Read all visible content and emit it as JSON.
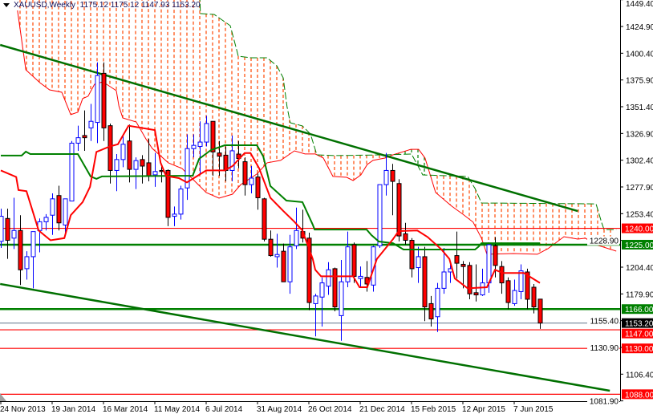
{
  "header": {
    "symbol_title": "XAUUSD,Weekly",
    "ohlc_readout": "1175.12 1175.12 1147.93 1153.20"
  },
  "chart_data": {
    "type": "candlestick",
    "symbol": "XAUUSD",
    "timeframe": "Weekly",
    "ylim": [
      1081.9,
      1449.4
    ],
    "y_ticks": [
      "1449.40",
      "1424.90",
      "1400.40",
      "1375.90",
      "1351.40",
      "1326.90",
      "1302.40",
      "1277.90",
      "1253.40",
      "1228.90",
      "1204.40",
      "1179.90",
      "1155.40",
      "1130.90",
      "1106.40",
      "1081.90"
    ],
    "x_ticks": [
      {
        "bar": 0,
        "label": "24 Nov 2013"
      },
      {
        "bar": 8,
        "label": "19 Jan 2014"
      },
      {
        "bar": 16,
        "label": "16 Mar 2014"
      },
      {
        "bar": 24,
        "label": "11 May 2014"
      },
      {
        "bar": 32,
        "label": "6 Jul 2014"
      },
      {
        "bar": 40,
        "label": "31 Aug 2014"
      },
      {
        "bar": 48,
        "label": "26 Oct 2014"
      },
      {
        "bar": 56,
        "label": "21 Dec 2014"
      },
      {
        "bar": 64,
        "label": "15 Feb 2015"
      },
      {
        "bar": 72,
        "label": "12 Apr 2015"
      },
      {
        "bar": 80,
        "label": "7 Jun 2015"
      }
    ],
    "ohlc_fields": [
      "open",
      "high",
      "low",
      "close"
    ],
    "candles": [
      [
        1228,
        1258,
        1222,
        1251
      ],
      [
        1249,
        1258,
        1212,
        1229
      ],
      [
        1231,
        1268,
        1221,
        1238
      ],
      [
        1238,
        1252,
        1188,
        1202
      ],
      [
        1203,
        1219,
        1193,
        1214
      ],
      [
        1214,
        1237,
        1185,
        1237
      ],
      [
        1238,
        1249,
        1218,
        1246
      ],
      [
        1246,
        1253,
        1238,
        1250
      ],
      [
        1252,
        1272,
        1234,
        1267
      ],
      [
        1270,
        1279,
        1238,
        1245
      ],
      [
        1243,
        1267,
        1236,
        1267
      ],
      [
        1265,
        1320,
        1265,
        1318
      ],
      [
        1318,
        1334,
        1311,
        1323
      ],
      [
        1325,
        1348,
        1311,
        1323
      ],
      [
        1332,
        1354,
        1320,
        1338
      ],
      [
        1337,
        1392,
        1318,
        1380
      ],
      [
        1382,
        1392,
        1320,
        1332
      ],
      [
        1334,
        1336,
        1281,
        1293
      ],
      [
        1293,
        1308,
        1274,
        1303
      ],
      [
        1303,
        1325,
        1296,
        1317
      ],
      [
        1320,
        1335,
        1282,
        1294
      ],
      [
        1294,
        1305,
        1276,
        1302
      ],
      [
        1303,
        1307,
        1281,
        1297
      ],
      [
        1300,
        1322,
        1283,
        1288
      ],
      [
        1289,
        1309,
        1278,
        1292
      ],
      [
        1293,
        1297,
        1282,
        1292
      ],
      [
        1293,
        1294,
        1242,
        1250
      ],
      [
        1251,
        1260,
        1242,
        1253
      ],
      [
        1253,
        1279,
        1248,
        1276
      ],
      [
        1277,
        1326,
        1266,
        1313
      ],
      [
        1313,
        1326,
        1305,
        1316
      ],
      [
        1315,
        1338,
        1290,
        1319
      ],
      [
        1319,
        1343,
        1315,
        1336
      ],
      [
        1338,
        1338,
        1288,
        1310
      ],
      [
        1309,
        1320,
        1288,
        1306
      ],
      [
        1307,
        1315,
        1283,
        1293
      ],
      [
        1293,
        1325,
        1283,
        1311
      ],
      [
        1308,
        1320,
        1295,
        1304
      ],
      [
        1301,
        1305,
        1270,
        1280
      ],
      [
        1280,
        1297,
        1272,
        1286
      ],
      [
        1287,
        1290,
        1257,
        1268
      ],
      [
        1267,
        1268,
        1228,
        1230
      ],
      [
        1230,
        1238,
        1214,
        1215
      ],
      [
        1214,
        1235,
        1204,
        1216
      ],
      [
        1219,
        1226,
        1191,
        1191
      ],
      [
        1191,
        1234,
        1180,
        1223
      ],
      [
        1224,
        1259,
        1221,
        1238
      ],
      [
        1237,
        1257,
        1227,
        1231
      ],
      [
        1231,
        1236,
        1165,
        1172
      ],
      [
        1171,
        1180,
        1141,
        1178
      ],
      [
        1177,
        1195,
        1150,
        1190
      ],
      [
        1187,
        1209,
        1179,
        1202
      ],
      [
        1203,
        1204,
        1164,
        1168
      ],
      [
        1160,
        1211,
        1137,
        1191
      ],
      [
        1191,
        1237,
        1186,
        1223
      ],
      [
        1225,
        1227,
        1190,
        1196
      ],
      [
        1194,
        1205,
        1186,
        1196
      ],
      [
        1195,
        1210,
        1182,
        1189
      ],
      [
        1188,
        1224,
        1182,
        1223
      ],
      [
        1224,
        1280,
        1222,
        1280
      ],
      [
        1280,
        1309,
        1270,
        1293
      ],
      [
        1293,
        1299,
        1252,
        1283
      ],
      [
        1281,
        1285,
        1228,
        1233
      ],
      [
        1235,
        1245,
        1225,
        1229
      ],
      [
        1229,
        1231,
        1195,
        1203
      ],
      [
        1204,
        1223,
        1190,
        1214
      ],
      [
        1214,
        1223,
        1155,
        1168
      ],
      [
        1171,
        1178,
        1150,
        1157
      ],
      [
        1159,
        1190,
        1145,
        1185
      ],
      [
        1185,
        1222,
        1180,
        1200
      ],
      [
        1200,
        1208,
        1190,
        1203
      ],
      [
        1215,
        1237,
        1194,
        1208
      ],
      [
        1207,
        1210,
        1185,
        1205
      ],
      [
        1206,
        1209,
        1175,
        1180
      ],
      [
        1181,
        1207,
        1173,
        1179
      ],
      [
        1179,
        1203,
        1178,
        1190
      ],
      [
        1190,
        1227,
        1181,
        1225
      ],
      [
        1224,
        1232,
        1195,
        1206
      ],
      [
        1205,
        1210,
        1180,
        1190
      ],
      [
        1192,
        1195,
        1166,
        1172
      ],
      [
        1171,
        1193,
        1169,
        1183
      ],
      [
        1182,
        1207,
        1175,
        1201
      ],
      [
        1200,
        1203,
        1166,
        1175
      ],
      [
        1186,
        1189,
        1162,
        1168
      ],
      [
        1175.12,
        1175.12,
        1147.93,
        1153.2
      ]
    ],
    "indicators": {
      "tenkan_sen": {
        "color": "#ff0000",
        "points": [
          [
            0,
            1293
          ],
          [
            2.4,
            1287
          ],
          [
            2.75,
            1275
          ],
          [
            4,
            1274
          ],
          [
            5.9,
            1238
          ],
          [
            7.75,
            1229
          ],
          [
            9.9,
            1231
          ],
          [
            10.9,
            1252
          ],
          [
            12.75,
            1264
          ],
          [
            13.9,
            1278
          ],
          [
            14.9,
            1310
          ],
          [
            17,
            1315
          ],
          [
            18.25,
            1317
          ],
          [
            19.9,
            1334
          ],
          [
            24,
            1330
          ],
          [
            24.9,
            1300
          ],
          [
            25.75,
            1288
          ],
          [
            27.75,
            1286
          ],
          [
            29,
            1282
          ],
          [
            32,
            1293
          ],
          [
            34.9,
            1293
          ],
          [
            36.1,
            1297
          ],
          [
            38,
            1309
          ],
          [
            38.9,
            1309
          ],
          [
            40.25,
            1295
          ],
          [
            42,
            1268
          ],
          [
            44,
            1256
          ],
          [
            45.75,
            1246
          ],
          [
            47,
            1238
          ],
          [
            48.6,
            1212
          ],
          [
            49,
            1202
          ],
          [
            49.9,
            1196
          ],
          [
            54.9,
            1196
          ],
          [
            55.9,
            1186
          ],
          [
            57.1,
            1186
          ],
          [
            58.6,
            1212
          ],
          [
            61.1,
            1230
          ],
          [
            62,
            1237.5
          ],
          [
            64.9,
            1238
          ],
          [
            66.5,
            1232
          ],
          [
            68.6,
            1221
          ],
          [
            69.9,
            1212
          ],
          [
            70.75,
            1194
          ],
          [
            72.75,
            1185
          ],
          [
            75.75,
            1186
          ],
          [
            77,
            1202
          ],
          [
            78.25,
            1199
          ],
          [
            81.5,
            1199
          ],
          [
            84,
            1190
          ]
        ]
      },
      "kijun_sen": {
        "color": "#008000",
        "points": [
          [
            0,
            1306.6
          ],
          [
            3.25,
            1306.6
          ],
          [
            3.9,
            1310.2
          ],
          [
            4.6,
            1308
          ],
          [
            12,
            1308
          ],
          [
            14,
            1287.5
          ],
          [
            14.9,
            1285.3
          ],
          [
            15.75,
            1287.5
          ],
          [
            29.9,
            1288.2
          ],
          [
            30.9,
            1303.6
          ],
          [
            32.75,
            1311.7
          ],
          [
            34.9,
            1316.1
          ],
          [
            39.9,
            1316.1
          ],
          [
            40.9,
            1305.8
          ],
          [
            42,
            1278.7
          ],
          [
            44.5,
            1265.4
          ],
          [
            47,
            1264
          ],
          [
            48.6,
            1243.4
          ],
          [
            48.9,
            1238.9
          ],
          [
            57,
            1238.9
          ],
          [
            57.75,
            1233.8
          ],
          [
            58.9,
            1227.9
          ],
          [
            61.1,
            1226.4
          ],
          [
            62.75,
            1220.6
          ],
          [
            73.9,
            1220.6
          ],
          [
            74.5,
            1223.5
          ],
          [
            74.9,
            1226.4
          ],
          [
            84,
            1226.4
          ]
        ]
      },
      "senkou_span_a": {
        "color": "#ff0000",
        "points": [
          [
            2.6,
            1439.6
          ],
          [
            3.9,
            1385.2
          ],
          [
            6.1,
            1373.4
          ],
          [
            7.6,
            1366.8
          ],
          [
            9.5,
            1364.6
          ],
          [
            10.9,
            1344.1
          ],
          [
            12,
            1346.3
          ],
          [
            12.75,
            1358.8
          ],
          [
            13.6,
            1361
          ],
          [
            14.6,
            1372
          ],
          [
            15.9,
            1374.2
          ],
          [
            18,
            1366.1
          ],
          [
            18.4,
            1352.1
          ],
          [
            19,
            1341.1
          ],
          [
            21.1,
            1337.4
          ],
          [
            22.6,
            1322
          ],
          [
            23.6,
            1313.2
          ],
          [
            26.1,
            1300
          ],
          [
            28.25,
            1294.8
          ],
          [
            30.75,
            1280.1
          ],
          [
            32,
            1272.8
          ],
          [
            34,
            1267.6
          ],
          [
            36.1,
            1271.3
          ],
          [
            37.4,
            1280.1
          ],
          [
            39.9,
            1289.7
          ],
          [
            41.5,
            1300
          ],
          [
            43.6,
            1302.2
          ],
          [
            45.75,
            1311
          ],
          [
            47.4,
            1308.1
          ],
          [
            49,
            1308.1
          ],
          [
            50.25,
            1304.4
          ],
          [
            51.75,
            1287.5
          ],
          [
            53.9,
            1286.7
          ],
          [
            54.9,
            1283.8
          ],
          [
            56.1,
            1288.9
          ],
          [
            57.1,
            1298.5
          ],
          [
            58,
            1302.2
          ],
          [
            59.9,
            1304.4
          ],
          [
            61.1,
            1307.3
          ],
          [
            63.9,
            1312.4
          ],
          [
            65.1,
            1312.4
          ],
          [
            66.1,
            1304.4
          ],
          [
            67.75,
            1272.8
          ],
          [
            70.25,
            1260.3
          ],
          [
            72,
            1252.9
          ],
          [
            73.6,
            1245.6
          ],
          [
            74.9,
            1230.9
          ],
          [
            75.75,
            1216.2
          ],
          [
            79.9,
            1216.9
          ],
          [
            83.6,
            1216.2
          ],
          [
            85.25,
            1221.3
          ],
          [
            87.75,
            1232.3
          ],
          [
            89.9,
            1230.1
          ],
          [
            91.1,
            1230.9
          ],
          [
            92.75,
            1225
          ],
          [
            95.9,
            1219.1
          ]
        ]
      },
      "senkou_span_b": {
        "color": "#008000",
        "points": [
          [
            2.6,
            1460
          ],
          [
            31,
            1455
          ],
          [
            31.1,
            1436.7
          ],
          [
            33.25,
            1435.9
          ],
          [
            34.5,
            1430.8
          ],
          [
            35.75,
            1425.6
          ],
          [
            36.75,
            1403.6
          ],
          [
            37,
            1397.7
          ],
          [
            39,
            1396.2
          ],
          [
            41.5,
            1396.2
          ],
          [
            43,
            1388.9
          ],
          [
            44,
            1377.9
          ],
          [
            44.6,
            1351.4
          ],
          [
            45.1,
            1336.7
          ],
          [
            47,
            1333.8
          ],
          [
            48.25,
            1326.4
          ],
          [
            49.25,
            1307.3
          ],
          [
            52,
            1306.6
          ],
          [
            59.9,
            1307.3
          ],
          [
            64,
            1308
          ],
          [
            65.75,
            1288.9
          ],
          [
            72.75,
            1287.5
          ],
          [
            73.9,
            1276.4
          ],
          [
            74.9,
            1263.2
          ],
          [
            92.75,
            1262.4
          ],
          [
            93.6,
            1245.6
          ],
          [
            94,
            1238.9
          ],
          [
            95.9,
            1238.9
          ]
        ]
      },
      "cloud_colors": {
        "bearish": "#ff4500",
        "bullish": "#008000"
      }
    },
    "trendlines": [
      {
        "color": "#007000",
        "from": [
          -0.1,
          1408
        ],
        "to": [
          89.9,
          1255.8
        ]
      },
      {
        "color": "#007000",
        "from": [
          -0.1,
          1189
        ],
        "to": [
          94.9,
          1091.2
        ]
      }
    ],
    "levels": [
      {
        "price": 1240.0,
        "label": "1240.00",
        "color": "#ff0000",
        "thick": false
      },
      {
        "price": 1225.0,
        "label": "1225.00",
        "color": "#008000",
        "thick": true
      },
      {
        "price": 1166.0,
        "label": "1166.00",
        "color": "#008000",
        "thick": true
      },
      {
        "price": 1153.2,
        "label": "1153.20",
        "color": "#000000",
        "line_color": "#8090a0",
        "thick": false
      },
      {
        "price": 1147.0,
        "label": "1147.00",
        "color": "#ff0000",
        "thick": false
      },
      {
        "price": 1130.0,
        "label": "1130.00",
        "color": "#ff0000",
        "thick": false
      },
      {
        "price": 1088.0,
        "label": "1088.00",
        "color": "#ff0000",
        "thick": false
      }
    ],
    "colors": {
      "bull": "#0000ff",
      "bear_body": "#ff0000",
      "bear_outline": "#000000"
    }
  }
}
